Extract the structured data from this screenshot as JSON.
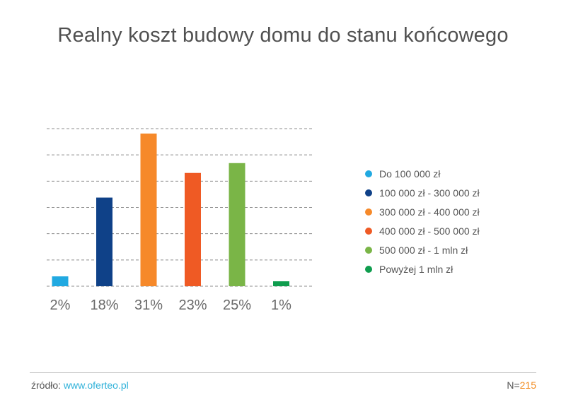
{
  "chart_data": {
    "type": "bar",
    "title": "Realny koszt budowy domu do stanu końcowego",
    "categories": [
      "Do 100 000 zł",
      "100 000 zł - 300 000 zł",
      "300 000 zł - 400 000 zł",
      "400 000 zł - 500 000 zł",
      "500 000 zł - 1 mln zł",
      "Powyżej 1 mln zł"
    ],
    "values": [
      2,
      18,
      31,
      23,
      25,
      1
    ],
    "value_labels": [
      "2%",
      "18%",
      "31%",
      "23%",
      "25%",
      "1%"
    ],
    "colors": [
      "#21a9e1",
      "#0f4188",
      "#f6892a",
      "#ef5a24",
      "#7ab547",
      "#0f9d4e"
    ],
    "ylim": [
      0,
      32
    ],
    "grid": true,
    "legend_position": "right"
  },
  "footer": {
    "source_label": "źródło:",
    "source_link": "www.oferteo.pl",
    "n_label": "N=",
    "n_value": "215"
  }
}
